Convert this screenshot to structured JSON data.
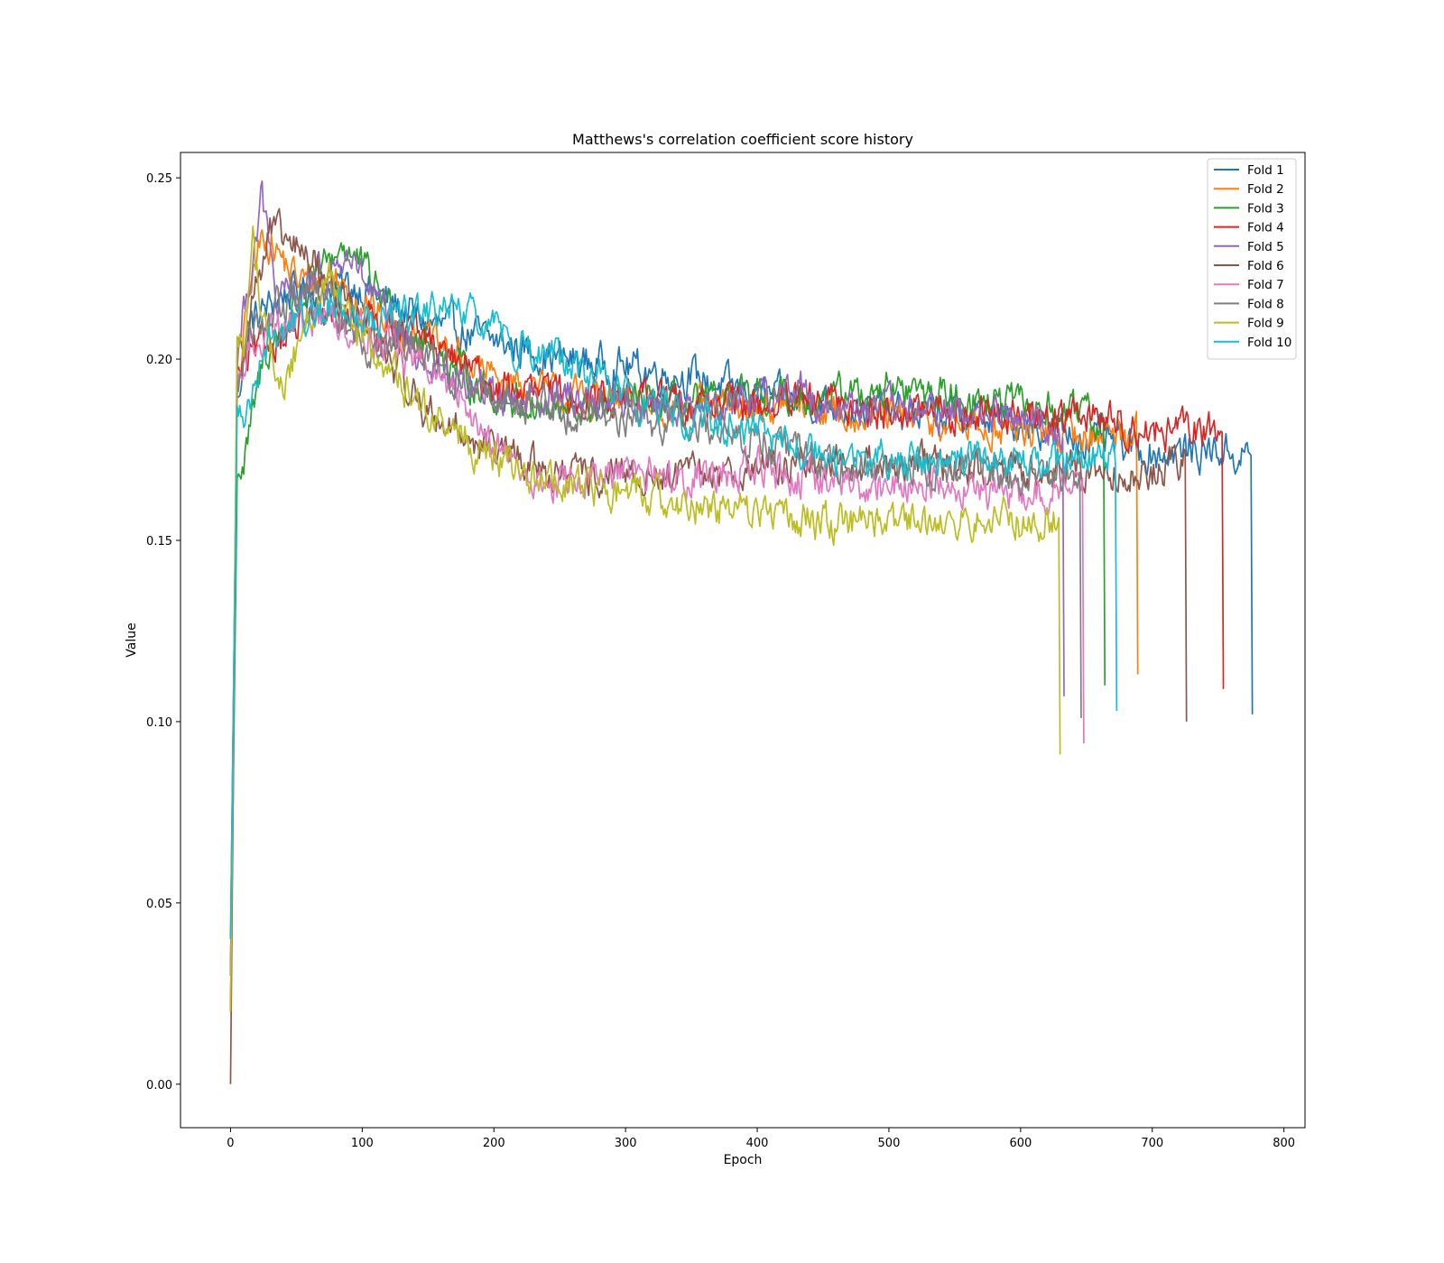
{
  "chart_data": {
    "type": "line",
    "title": "Matthews's correlation coefficient score history",
    "xlabel": "Epoch",
    "ylabel": "Value",
    "xlim": [
      -38,
      816
    ],
    "ylim": [
      -0.012,
      0.257
    ],
    "xticks": [
      0,
      100,
      200,
      300,
      400,
      500,
      600,
      700,
      800
    ],
    "yticks": [
      0.0,
      0.05,
      0.1,
      0.15,
      0.2,
      0.25
    ],
    "xtick_labels": [
      "0",
      "100",
      "200",
      "300",
      "400",
      "500",
      "600",
      "700",
      "800"
    ],
    "ytick_labels": [
      "0.00",
      "0.05",
      "0.10",
      "0.15",
      "0.20",
      "0.25"
    ],
    "grid": false,
    "legend_position": "top-right",
    "series": [
      {
        "name": "Fold 1",
        "color": "#1f77b4",
        "end": 776,
        "final": 0.102,
        "points": [
          [
            0,
            0.04
          ],
          [
            5,
            0.19
          ],
          [
            15,
            0.21
          ],
          [
            40,
            0.218
          ],
          [
            70,
            0.22
          ],
          [
            100,
            0.22
          ],
          [
            150,
            0.21
          ],
          [
            200,
            0.205
          ],
          [
            250,
            0.2
          ],
          [
            300,
            0.198
          ],
          [
            350,
            0.195
          ],
          [
            400,
            0.19
          ],
          [
            450,
            0.188
          ],
          [
            500,
            0.185
          ],
          [
            550,
            0.185
          ],
          [
            600,
            0.182
          ],
          [
            650,
            0.178
          ],
          [
            700,
            0.174
          ],
          [
            750,
            0.175
          ],
          [
            770,
            0.173
          ]
        ]
      },
      {
        "name": "Fold 2",
        "color": "#ff7f0e",
        "end": 689,
        "final": 0.113,
        "points": [
          [
            0,
            0.03
          ],
          [
            5,
            0.19
          ],
          [
            15,
            0.22
          ],
          [
            25,
            0.235
          ],
          [
            50,
            0.222
          ],
          [
            80,
            0.222
          ],
          [
            120,
            0.21
          ],
          [
            150,
            0.205
          ],
          [
            200,
            0.195
          ],
          [
            250,
            0.19
          ],
          [
            300,
            0.188
          ],
          [
            350,
            0.186
          ],
          [
            400,
            0.187
          ],
          [
            450,
            0.186
          ],
          [
            500,
            0.184
          ],
          [
            550,
            0.182
          ],
          [
            600,
            0.18
          ],
          [
            650,
            0.179
          ],
          [
            685,
            0.181
          ]
        ]
      },
      {
        "name": "Fold 3",
        "color": "#2ca02c",
        "end": 664,
        "final": 0.11,
        "points": [
          [
            0,
            0.02
          ],
          [
            5,
            0.17
          ],
          [
            10,
            0.17
          ],
          [
            25,
            0.2
          ],
          [
            50,
            0.215
          ],
          [
            85,
            0.232
          ],
          [
            100,
            0.225
          ],
          [
            130,
            0.21
          ],
          [
            160,
            0.2
          ],
          [
            200,
            0.19
          ],
          [
            250,
            0.185
          ],
          [
            300,
            0.188
          ],
          [
            350,
            0.187
          ],
          [
            400,
            0.189
          ],
          [
            450,
            0.19
          ],
          [
            500,
            0.192
          ],
          [
            550,
            0.19
          ],
          [
            600,
            0.187
          ],
          [
            640,
            0.185
          ],
          [
            660,
            0.183
          ]
        ]
      },
      {
        "name": "Fold 4",
        "color": "#d62728",
        "end": 754,
        "final": 0.109,
        "points": [
          [
            0,
            0.02
          ],
          [
            5,
            0.195
          ],
          [
            15,
            0.2
          ],
          [
            30,
            0.205
          ],
          [
            60,
            0.21
          ],
          [
            100,
            0.212
          ],
          [
            150,
            0.205
          ],
          [
            200,
            0.192
          ],
          [
            250,
            0.19
          ],
          [
            300,
            0.19
          ],
          [
            350,
            0.188
          ],
          [
            400,
            0.187
          ],
          [
            450,
            0.188
          ],
          [
            500,
            0.186
          ],
          [
            550,
            0.185
          ],
          [
            600,
            0.184
          ],
          [
            650,
            0.185
          ],
          [
            700,
            0.18
          ],
          [
            750,
            0.18
          ]
        ]
      },
      {
        "name": "Fold 5",
        "color": "#9467bd",
        "end": 633,
        "final": 0.107,
        "points": [
          [
            0,
            0.03
          ],
          [
            5,
            0.2
          ],
          [
            15,
            0.225
          ],
          [
            24,
            0.245
          ],
          [
            35,
            0.215
          ],
          [
            60,
            0.22
          ],
          [
            90,
            0.228
          ],
          [
            120,
            0.21
          ],
          [
            160,
            0.195
          ],
          [
            200,
            0.19
          ],
          [
            250,
            0.19
          ],
          [
            300,
            0.188
          ],
          [
            350,
            0.186
          ],
          [
            400,
            0.19
          ],
          [
            430,
            0.193
          ],
          [
            450,
            0.187
          ],
          [
            500,
            0.186
          ],
          [
            550,
            0.185
          ],
          [
            600,
            0.183
          ],
          [
            630,
            0.18
          ]
        ]
      },
      {
        "name": "Fold 6",
        "color": "#8c564b",
        "end": 726,
        "final": 0.1,
        "points": [
          [
            0,
            0.0
          ],
          [
            5,
            0.2
          ],
          [
            15,
            0.215
          ],
          [
            30,
            0.235
          ],
          [
            60,
            0.228
          ],
          [
            90,
            0.215
          ],
          [
            120,
            0.2
          ],
          [
            150,
            0.185
          ],
          [
            200,
            0.175
          ],
          [
            250,
            0.168
          ],
          [
            300,
            0.167
          ],
          [
            350,
            0.168
          ],
          [
            400,
            0.17
          ],
          [
            450,
            0.172
          ],
          [
            500,
            0.171
          ],
          [
            550,
            0.17
          ],
          [
            600,
            0.17
          ],
          [
            650,
            0.17
          ],
          [
            700,
            0.168
          ],
          [
            720,
            0.172
          ]
        ]
      },
      {
        "name": "Fold 7",
        "color": "#e377c2",
        "end": 648,
        "final": 0.094,
        "points": [
          [
            0,
            0.03
          ],
          [
            5,
            0.19
          ],
          [
            15,
            0.205
          ],
          [
            40,
            0.21
          ],
          [
            70,
            0.212
          ],
          [
            100,
            0.208
          ],
          [
            140,
            0.2
          ],
          [
            170,
            0.19
          ],
          [
            200,
            0.178
          ],
          [
            230,
            0.165
          ],
          [
            260,
            0.166
          ],
          [
            300,
            0.168
          ],
          [
            350,
            0.168
          ],
          [
            400,
            0.17
          ],
          [
            450,
            0.166
          ],
          [
            500,
            0.165
          ],
          [
            550,
            0.166
          ],
          [
            600,
            0.162
          ],
          [
            640,
            0.165
          ]
        ]
      },
      {
        "name": "Fold 8",
        "color": "#7f7f7f",
        "end": 646,
        "final": 0.101,
        "points": [
          [
            0,
            0.03
          ],
          [
            5,
            0.19
          ],
          [
            15,
            0.21
          ],
          [
            40,
            0.215
          ],
          [
            70,
            0.218
          ],
          [
            100,
            0.205
          ],
          [
            150,
            0.2
          ],
          [
            200,
            0.19
          ],
          [
            250,
            0.186
          ],
          [
            300,
            0.183
          ],
          [
            350,
            0.182
          ],
          [
            400,
            0.178
          ],
          [
            450,
            0.172
          ],
          [
            500,
            0.17
          ],
          [
            550,
            0.17
          ],
          [
            600,
            0.168
          ],
          [
            640,
            0.168
          ]
        ]
      },
      {
        "name": "Fold 9",
        "color": "#bcbd22",
        "end": 630,
        "final": 0.091,
        "points": [
          [
            0,
            0.02
          ],
          [
            5,
            0.205
          ],
          [
            10,
            0.205
          ],
          [
            17,
            0.232
          ],
          [
            28,
            0.205
          ],
          [
            40,
            0.19
          ],
          [
            55,
            0.21
          ],
          [
            75,
            0.22
          ],
          [
            100,
            0.205
          ],
          [
            150,
            0.185
          ],
          [
            200,
            0.172
          ],
          [
            250,
            0.165
          ],
          [
            300,
            0.163
          ],
          [
            350,
            0.16
          ],
          [
            400,
            0.158
          ],
          [
            450,
            0.155
          ],
          [
            500,
            0.155
          ],
          [
            550,
            0.156
          ],
          [
            600,
            0.155
          ],
          [
            625,
            0.157
          ]
        ]
      },
      {
        "name": "Fold 10",
        "color": "#17becf",
        "end": 673,
        "final": 0.103,
        "points": [
          [
            0,
            0.04
          ],
          [
            5,
            0.185
          ],
          [
            10,
            0.182
          ],
          [
            25,
            0.205
          ],
          [
            50,
            0.21
          ],
          [
            80,
            0.215
          ],
          [
            120,
            0.21
          ],
          [
            150,
            0.213
          ],
          [
            180,
            0.212
          ],
          [
            200,
            0.208
          ],
          [
            230,
            0.202
          ],
          [
            260,
            0.198
          ],
          [
            300,
            0.19
          ],
          [
            350,
            0.185
          ],
          [
            400,
            0.18
          ],
          [
            450,
            0.172
          ],
          [
            500,
            0.172
          ],
          [
            550,
            0.172
          ],
          [
            600,
            0.17
          ],
          [
            640,
            0.172
          ],
          [
            670,
            0.174
          ]
        ]
      }
    ]
  }
}
